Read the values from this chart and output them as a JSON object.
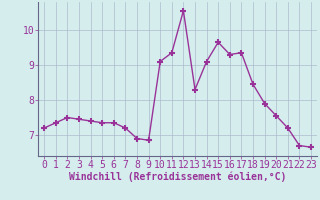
{
  "x": [
    0,
    1,
    2,
    3,
    4,
    5,
    6,
    7,
    8,
    9,
    10,
    11,
    12,
    13,
    14,
    15,
    16,
    17,
    18,
    19,
    20,
    21,
    22,
    23
  ],
  "y": [
    7.2,
    7.35,
    7.5,
    7.45,
    7.4,
    7.35,
    7.35,
    7.2,
    6.9,
    6.85,
    9.1,
    9.35,
    10.55,
    8.3,
    9.1,
    9.65,
    9.3,
    9.35,
    8.45,
    7.9,
    7.55,
    7.2,
    6.7,
    6.65
  ],
  "line_color": "#993399",
  "marker": "+",
  "marker_size": 5,
  "bg_color": "#d5eeed",
  "grid_color": "#aabbcc",
  "xlabel": "Windchill (Refroidissement éolien,°C)",
  "xlim": [
    -0.5,
    23.5
  ],
  "ylim": [
    6.4,
    10.8
  ],
  "yticks": [
    7,
    8,
    9,
    10
  ],
  "xticks": [
    0,
    1,
    2,
    3,
    4,
    5,
    6,
    7,
    8,
    9,
    10,
    11,
    12,
    13,
    14,
    15,
    16,
    17,
    18,
    19,
    20,
    21,
    22,
    23
  ],
  "xlabel_fontsize": 7.0,
  "tick_fontsize": 7.0,
  "linewidth": 1.0
}
